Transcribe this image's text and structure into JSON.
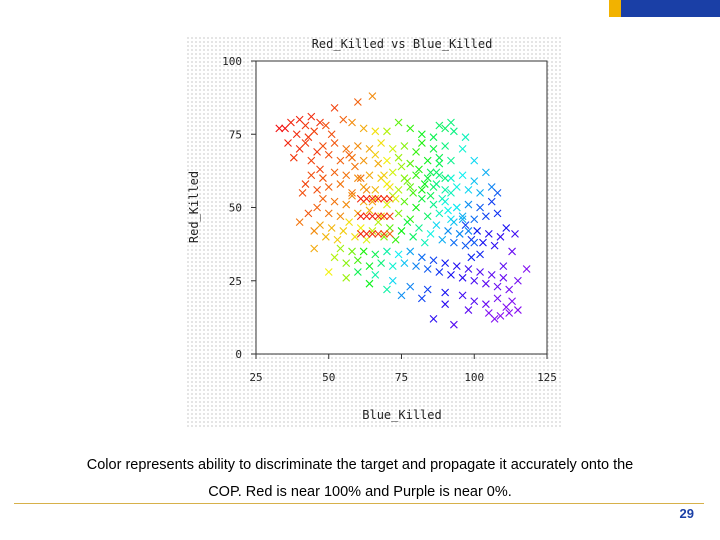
{
  "colors": {
    "gold": "#f2b200",
    "blue": "#1a3fa6",
    "footer_rule": "#d7b14a"
  },
  "chart_data": {
    "type": "scatter",
    "title": "Red_Killed vs Blue_Killed",
    "xlabel": "Blue_Killed",
    "ylabel": "Red_Killed",
    "xlim": [
      25,
      125
    ],
    "ylim": [
      0,
      100
    ],
    "xticks": [
      25,
      50,
      75,
      100,
      125
    ],
    "yticks": [
      0,
      25,
      50,
      75,
      100
    ],
    "grid": false,
    "marker": "x",
    "color_scale": "red (near 100%) to purple (near 0%)",
    "points": [
      [
        33,
        77,
        1.0
      ],
      [
        35,
        77,
        1.0
      ],
      [
        37,
        79,
        0.98
      ],
      [
        39,
        75,
        0.97
      ],
      [
        40,
        80,
        0.98
      ],
      [
        42,
        78,
        0.96
      ],
      [
        44,
        81,
        0.97
      ],
      [
        45,
        76,
        0.95
      ],
      [
        47,
        79,
        0.96
      ],
      [
        49,
        78,
        0.94
      ],
      [
        52,
        84,
        0.95
      ],
      [
        55,
        80,
        0.92
      ],
      [
        58,
        79,
        0.88
      ],
      [
        62,
        77,
        0.85
      ],
      [
        66,
        76,
        0.8
      ],
      [
        70,
        76,
        0.72
      ],
      [
        74,
        79,
        0.64
      ],
      [
        78,
        77,
        0.6
      ],
      [
        82,
        75,
        0.55
      ],
      [
        86,
        74,
        0.5
      ],
      [
        90,
        77,
        0.48
      ],
      [
        93,
        76,
        0.45
      ],
      [
        97,
        74,
        0.4
      ],
      [
        38,
        67,
        0.96
      ],
      [
        40,
        70,
        0.97
      ],
      [
        42,
        72,
        0.96
      ],
      [
        44,
        66,
        0.95
      ],
      [
        46,
        69,
        0.96
      ],
      [
        48,
        71,
        0.94
      ],
      [
        50,
        68,
        0.94
      ],
      [
        52,
        72,
        0.93
      ],
      [
        54,
        66,
        0.92
      ],
      [
        56,
        70,
        0.9
      ],
      [
        58,
        67,
        0.9
      ],
      [
        60,
        71,
        0.88
      ],
      [
        62,
        66,
        0.87
      ],
      [
        64,
        70,
        0.85
      ],
      [
        66,
        68,
        0.82
      ],
      [
        68,
        72,
        0.8
      ],
      [
        70,
        66,
        0.78
      ],
      [
        72,
        70,
        0.75
      ],
      [
        74,
        67,
        0.7
      ],
      [
        76,
        71,
        0.68
      ],
      [
        78,
        65,
        0.64
      ],
      [
        80,
        69,
        0.6
      ],
      [
        82,
        72,
        0.58
      ],
      [
        84,
        66,
        0.55
      ],
      [
        86,
        70,
        0.52
      ],
      [
        88,
        67,
        0.5
      ],
      [
        90,
        71,
        0.46
      ],
      [
        92,
        66,
        0.44
      ],
      [
        42,
        58,
        0.95
      ],
      [
        44,
        61,
        0.94
      ],
      [
        46,
        56,
        0.94
      ],
      [
        48,
        60,
        0.93
      ],
      [
        50,
        57,
        0.92
      ],
      [
        52,
        62,
        0.92
      ],
      [
        54,
        58,
        0.9
      ],
      [
        56,
        61,
        0.9
      ],
      [
        58,
        55,
        0.9
      ],
      [
        60,
        60,
        0.88
      ],
      [
        62,
        57,
        0.86
      ],
      [
        64,
        61,
        0.85
      ],
      [
        66,
        56,
        0.84
      ],
      [
        68,
        60,
        0.82
      ],
      [
        70,
        58,
        0.78
      ],
      [
        72,
        62,
        0.75
      ],
      [
        74,
        56,
        0.72
      ],
      [
        76,
        60,
        0.68
      ],
      [
        78,
        57,
        0.64
      ],
      [
        80,
        61,
        0.6
      ],
      [
        82,
        56,
        0.56
      ],
      [
        84,
        60,
        0.52
      ],
      [
        86,
        57,
        0.48
      ],
      [
        88,
        61,
        0.45
      ],
      [
        90,
        56,
        0.42
      ],
      [
        92,
        60,
        0.38
      ],
      [
        94,
        57,
        0.36
      ],
      [
        96,
        61,
        0.34
      ],
      [
        98,
        56,
        0.32
      ],
      [
        100,
        59,
        0.3
      ],
      [
        102,
        55,
        0.28
      ],
      [
        46,
        50,
        0.92
      ],
      [
        48,
        53,
        0.92
      ],
      [
        50,
        48,
        0.9
      ],
      [
        52,
        52,
        0.9
      ],
      [
        54,
        47,
        0.88
      ],
      [
        56,
        51,
        0.88
      ],
      [
        58,
        54,
        0.88
      ],
      [
        60,
        48,
        0.86
      ],
      [
        62,
        52,
        0.85
      ],
      [
        64,
        49,
        0.84
      ],
      [
        66,
        53,
        0.82
      ],
      [
        68,
        47,
        0.8
      ],
      [
        70,
        51,
        0.76
      ],
      [
        72,
        54,
        0.72
      ],
      [
        74,
        48,
        0.68
      ],
      [
        76,
        52,
        0.64
      ],
      [
        78,
        46,
        0.6
      ],
      [
        80,
        50,
        0.56
      ],
      [
        82,
        53,
        0.52
      ],
      [
        84,
        47,
        0.48
      ],
      [
        86,
        51,
        0.44
      ],
      [
        88,
        48,
        0.4
      ],
      [
        90,
        52,
        0.36
      ],
      [
        92,
        46,
        0.33
      ],
      [
        94,
        50,
        0.3
      ],
      [
        96,
        47,
        0.28
      ],
      [
        98,
        51,
        0.25
      ],
      [
        100,
        46,
        0.22
      ],
      [
        102,
        50,
        0.2
      ],
      [
        104,
        47,
        0.18
      ],
      [
        106,
        52,
        0.17
      ],
      [
        108,
        48,
        0.16
      ],
      [
        45,
        42,
        0.88
      ],
      [
        47,
        44,
        0.86
      ],
      [
        49,
        40,
        0.84
      ],
      [
        51,
        43,
        0.84
      ],
      [
        53,
        39,
        0.82
      ],
      [
        55,
        42,
        0.82
      ],
      [
        57,
        45,
        0.8
      ],
      [
        59,
        40,
        0.8
      ],
      [
        61,
        43,
        0.78
      ],
      [
        63,
        39,
        0.76
      ],
      [
        65,
        42,
        0.74
      ],
      [
        67,
        45,
        0.72
      ],
      [
        69,
        40,
        0.68
      ],
      [
        71,
        43,
        0.64
      ],
      [
        73,
        39,
        0.6
      ],
      [
        75,
        42,
        0.56
      ],
      [
        77,
        45,
        0.52
      ],
      [
        79,
        40,
        0.48
      ],
      [
        81,
        43,
        0.44
      ],
      [
        83,
        38,
        0.4
      ],
      [
        85,
        41,
        0.36
      ],
      [
        87,
        44,
        0.32
      ],
      [
        89,
        39,
        0.28
      ],
      [
        91,
        42,
        0.25
      ],
      [
        93,
        38,
        0.22
      ],
      [
        95,
        41,
        0.2
      ],
      [
        97,
        44,
        0.18
      ],
      [
        99,
        39,
        0.16
      ],
      [
        101,
        42,
        0.14
      ],
      [
        103,
        38,
        0.12
      ],
      [
        105,
        41,
        0.11
      ],
      [
        107,
        37,
        0.1
      ],
      [
        109,
        40,
        0.09
      ],
      [
        52,
        33,
        0.72
      ],
      [
        54,
        36,
        0.7
      ],
      [
        56,
        31,
        0.68
      ],
      [
        58,
        35,
        0.66
      ],
      [
        60,
        32,
        0.62
      ],
      [
        62,
        35,
        0.58
      ],
      [
        64,
        30,
        0.54
      ],
      [
        66,
        34,
        0.5
      ],
      [
        68,
        31,
        0.46
      ],
      [
        70,
        35,
        0.42
      ],
      [
        72,
        30,
        0.38
      ],
      [
        74,
        34,
        0.34
      ],
      [
        76,
        31,
        0.3
      ],
      [
        78,
        35,
        0.27
      ],
      [
        80,
        30,
        0.24
      ],
      [
        82,
        33,
        0.22
      ],
      [
        84,
        29,
        0.2
      ],
      [
        86,
        32,
        0.18
      ],
      [
        88,
        28,
        0.16
      ],
      [
        90,
        31,
        0.14
      ],
      [
        92,
        27,
        0.12
      ],
      [
        94,
        30,
        0.11
      ],
      [
        96,
        26,
        0.1
      ],
      [
        98,
        29,
        0.08
      ],
      [
        100,
        25,
        0.07
      ],
      [
        102,
        28,
        0.06
      ],
      [
        104,
        24,
        0.05
      ],
      [
        106,
        27,
        0.05
      ],
      [
        108,
        23,
        0.04
      ],
      [
        110,
        26,
        0.04
      ],
      [
        112,
        22,
        0.03
      ],
      [
        115,
        25,
        0.03
      ],
      [
        60,
        28,
        0.5
      ],
      [
        66,
        27,
        0.42
      ],
      [
        72,
        25,
        0.32
      ],
      [
        78,
        23,
        0.24
      ],
      [
        84,
        22,
        0.18
      ],
      [
        90,
        21,
        0.12
      ],
      [
        96,
        20,
        0.08
      ],
      [
        100,
        18,
        0.06
      ],
      [
        104,
        17,
        0.04
      ],
      [
        108,
        19,
        0.03
      ],
      [
        111,
        16,
        0.02
      ],
      [
        113,
        18,
        0.02
      ],
      [
        115,
        15,
        0.01
      ],
      [
        112,
        14,
        0.01
      ],
      [
        109,
        13,
        0.01
      ],
      [
        105,
        14,
        0.02
      ],
      [
        98,
        15,
        0.05
      ],
      [
        90,
        17,
        0.1
      ],
      [
        82,
        19,
        0.18
      ],
      [
        75,
        20,
        0.25
      ],
      [
        61,
        53,
        0.98
      ],
      [
        63,
        53,
        0.98
      ],
      [
        65,
        53,
        0.98
      ],
      [
        67,
        53,
        0.98
      ],
      [
        69,
        53,
        0.97
      ],
      [
        71,
        53,
        0.96
      ],
      [
        61,
        47,
        0.98
      ],
      [
        63,
        47,
        0.98
      ],
      [
        65,
        47,
        0.98
      ],
      [
        67,
        47,
        0.97
      ],
      [
        69,
        47,
        0.96
      ],
      [
        71,
        47,
        0.95
      ],
      [
        61,
        41,
        0.97
      ],
      [
        63,
        41,
        0.97
      ],
      [
        65,
        41,
        0.96
      ],
      [
        67,
        41,
        0.95
      ],
      [
        69,
        41,
        0.94
      ],
      [
        71,
        41,
        0.92
      ],
      [
        85,
        62,
        0.5
      ],
      [
        87,
        58,
        0.45
      ],
      [
        89,
        53,
        0.4
      ],
      [
        91,
        49,
        0.35
      ],
      [
        93,
        45,
        0.3
      ],
      [
        95,
        41,
        0.25
      ],
      [
        97,
        37,
        0.2
      ],
      [
        99,
        33,
        0.15
      ],
      [
        88,
        65,
        0.5
      ],
      [
        90,
        60,
        0.46
      ],
      [
        92,
        55,
        0.4
      ],
      [
        94,
        50,
        0.34
      ],
      [
        96,
        46,
        0.28
      ],
      [
        98,
        42,
        0.24
      ],
      [
        100,
        38,
        0.2
      ],
      [
        102,
        34,
        0.15
      ],
      [
        57,
        68,
        0.92
      ],
      [
        59,
        64,
        0.9
      ],
      [
        61,
        60,
        0.9
      ],
      [
        63,
        56,
        0.88
      ],
      [
        65,
        52,
        0.86
      ],
      [
        67,
        65,
        0.85
      ],
      [
        69,
        61,
        0.82
      ],
      [
        71,
        57,
        0.8
      ],
      [
        73,
        53,
        0.76
      ],
      [
        75,
        64,
        0.7
      ],
      [
        77,
        59,
        0.66
      ],
      [
        79,
        55,
        0.62
      ],
      [
        81,
        63,
        0.58
      ],
      [
        83,
        58,
        0.55
      ],
      [
        85,
        54,
        0.5
      ],
      [
        87,
        62,
        0.48
      ],
      [
        36,
        72,
        0.98
      ],
      [
        43,
        74,
        0.96
      ],
      [
        51,
        75,
        0.94
      ],
      [
        47,
        63,
        0.95
      ],
      [
        41,
        55,
        0.94
      ],
      [
        43,
        48,
        0.93
      ],
      [
        40,
        45,
        0.9
      ],
      [
        45,
        36,
        0.85
      ],
      [
        50,
        28,
        0.78
      ],
      [
        56,
        26,
        0.7
      ],
      [
        64,
        24,
        0.55
      ],
      [
        70,
        22,
        0.42
      ],
      [
        86,
        12,
        0.1
      ],
      [
        93,
        10,
        0.06
      ],
      [
        107,
        12,
        0.02
      ],
      [
        118,
        29,
        0.02
      ],
      [
        113,
        35,
        0.04
      ],
      [
        110,
        30,
        0.05
      ],
      [
        88,
        78,
        0.48
      ],
      [
        92,
        79,
        0.46
      ],
      [
        96,
        70,
        0.38
      ],
      [
        100,
        66,
        0.32
      ],
      [
        104,
        62,
        0.28
      ],
      [
        106,
        57,
        0.24
      ],
      [
        108,
        55,
        0.2
      ],
      [
        111,
        43,
        0.12
      ],
      [
        114,
        41,
        0.08
      ],
      [
        60,
        86,
        0.92
      ],
      [
        65,
        88,
        0.88
      ]
    ]
  },
  "caption": {
    "line1": "Color represents ability to discriminate the target and propagate it accurately onto the",
    "line2": "COP. Red is near 100% and Purple is near 0%."
  },
  "page_number": "29"
}
